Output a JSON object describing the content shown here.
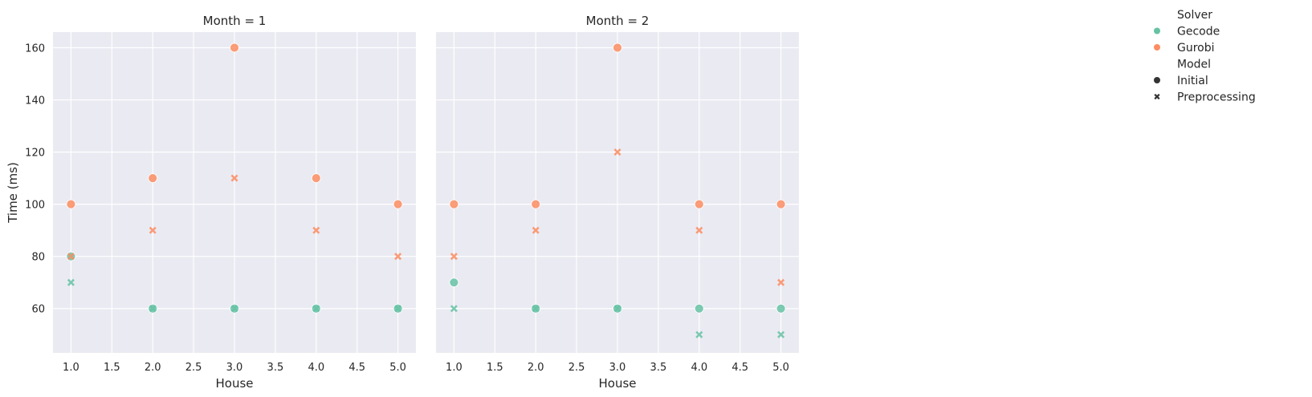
{
  "chart_data": {
    "type": "scatter",
    "xlabel": "House",
    "ylabel": "Time (ms)",
    "xlim": [
      0.78,
      5.22
    ],
    "ylim": [
      43,
      166
    ],
    "x_ticks": [
      "1.0",
      "1.5",
      "2.0",
      "2.5",
      "3.0",
      "3.5",
      "4.0",
      "4.5",
      "5.0"
    ],
    "y_ticks": [
      "60",
      "80",
      "100",
      "120",
      "140",
      "160"
    ],
    "grid": true,
    "legend": {
      "placement": "right",
      "hue_title": "Solver",
      "hue_entries": [
        {
          "label": "Gecode",
          "color": "#66c2a5"
        },
        {
          "label": "Gurobi",
          "color": "#fc8d62"
        }
      ],
      "style_title": "Model",
      "style_entries": [
        {
          "label": "Initial",
          "marker": "circle"
        },
        {
          "label": "Preprocessing",
          "marker": "x"
        }
      ]
    },
    "facets": [
      {
        "title": "Month = 1",
        "series": [
          {
            "solver": "Gecode",
            "model": "Initial",
            "x": [
              1,
              2,
              3,
              4,
              5
            ],
            "y": [
              80,
              60,
              60,
              60,
              60
            ]
          },
          {
            "solver": "Gecode",
            "model": "Preprocessing",
            "x": [
              1,
              2,
              3,
              4,
              5
            ],
            "y": [
              70,
              60,
              60,
              60,
              60
            ]
          },
          {
            "solver": "Gurobi",
            "model": "Initial",
            "x": [
              1,
              2,
              3,
              4,
              5
            ],
            "y": [
              100,
              110,
              160,
              110,
              100
            ]
          },
          {
            "solver": "Gurobi",
            "model": "Preprocessing",
            "x": [
              1,
              2,
              3,
              4,
              5
            ],
            "y": [
              80,
              90,
              110,
              90,
              80
            ]
          }
        ]
      },
      {
        "title": "Month = 2",
        "series": [
          {
            "solver": "Gecode",
            "model": "Initial",
            "x": [
              1,
              2,
              3,
              4,
              5
            ],
            "y": [
              70,
              60,
              60,
              60,
              60
            ]
          },
          {
            "solver": "Gecode",
            "model": "Preprocessing",
            "x": [
              1,
              2,
              3,
              4,
              5
            ],
            "y": [
              60,
              60,
              60,
              50,
              50
            ]
          },
          {
            "solver": "Gurobi",
            "model": "Initial",
            "x": [
              1,
              2,
              3,
              4,
              5
            ],
            "y": [
              100,
              100,
              160,
              100,
              100
            ]
          },
          {
            "solver": "Gurobi",
            "model": "Preprocessing",
            "x": [
              1,
              2,
              3,
              4,
              5
            ],
            "y": [
              80,
              90,
              120,
              90,
              70
            ]
          }
        ]
      }
    ]
  }
}
